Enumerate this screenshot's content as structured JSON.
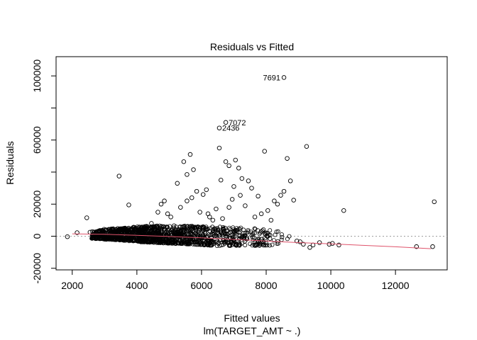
{
  "chart_data": {
    "type": "scatter",
    "title": "Residuals vs Fitted",
    "xlabel": "Fitted values",
    "xsublabel": "lm(TARGET_AMT ~ .)",
    "ylabel": "Residuals",
    "xlim": [
      1500,
      13600
    ],
    "ylim": [
      -21000,
      112000
    ],
    "x_ticks": [
      2000,
      4000,
      6000,
      8000,
      10000,
      12000
    ],
    "x_tick_labels": [
      "2000",
      "4000",
      "6000",
      "8000",
      "10000",
      "12000"
    ],
    "y_ticks": [
      -20000,
      0,
      20000,
      60000,
      100000
    ],
    "y_tick_labels": [
      "-20000",
      "0",
      "20000",
      "60000",
      "100000"
    ],
    "y_minor_ticks": [
      40000,
      80000
    ],
    "reference_line_y": 0,
    "colors": {
      "points": "#000000",
      "smooth": "#df536b",
      "reference": "#9e9e9e"
    },
    "labeled_points": [
      {
        "label": "7691",
        "x": 8550,
        "y": 99000
      },
      {
        "label": "7072",
        "x": 6750,
        "y": 71000
      },
      {
        "label": "2436",
        "x": 6550,
        "y": 67500
      }
    ],
    "points": {
      "x": [
        1850,
        2150,
        2450,
        3450,
        3750,
        5450,
        5550,
        5750,
        5650,
        6150,
        6550,
        6750,
        6850,
        6950,
        7050,
        7150,
        7250,
        7450,
        7550,
        7750,
        7950,
        8450,
        8550,
        8650,
        8750,
        9250,
        8850,
        9050,
        9450,
        10050,
        10250,
        10400,
        12650,
        13150,
        13200,
        5050,
        5150,
        5250,
        4850,
        4650,
        4450,
        5350,
        5850,
        5950,
        6250,
        6350,
        6450,
        6650,
        7350,
        7850,
        8050,
        8150,
        8250,
        8350,
        8950,
        4250,
        4050,
        3850,
        3250,
        2750,
        2550,
        2950,
        4750,
        4950,
        5550,
        6050,
        6850,
        7650,
        9150,
        9350,
        9650,
        9950,
        3550,
        3650,
        6600,
        7000,
        5700,
        7200,
        6200
      ],
      "y": [
        -300,
        2200,
        11500,
        37500,
        19500,
        46500,
        38500,
        41500,
        51000,
        29000,
        55000,
        46500,
        44000,
        23000,
        47500,
        42500,
        36000,
        34500,
        30000,
        25000,
        53000,
        25500,
        28000,
        48500,
        34500,
        56000,
        22500,
        -3500,
        -5500,
        -4500,
        -5500,
        16000,
        -6500,
        -6500,
        21500,
        12000,
        6500,
        33000,
        22000,
        15000,
        8000,
        18000,
        28000,
        15000,
        12000,
        10000,
        17000,
        11000,
        19000,
        14000,
        16000,
        10000,
        22000,
        20000,
        -3000,
        6000,
        4000,
        2500,
        1500,
        1000,
        2500,
        3500,
        20000,
        14000,
        22000,
        26000,
        18000,
        12000,
        -5000,
        -7000,
        -4000,
        -5000,
        1500,
        2500,
        35000,
        31000,
        24000,
        25500,
        14000
      ]
    },
    "dense_band": [
      {
        "x": 2600,
        "lo": -1500,
        "hi": 3000
      },
      {
        "x": 3000,
        "lo": -2000,
        "hi": 4500
      },
      {
        "x": 3500,
        "lo": -2500,
        "hi": 5000
      },
      {
        "x": 4000,
        "lo": -3500,
        "hi": 6000
      },
      {
        "x": 4500,
        "lo": -4000,
        "hi": 6500
      },
      {
        "x": 5000,
        "lo": -4500,
        "hi": 6500
      },
      {
        "x": 5500,
        "lo": -5000,
        "hi": 6500
      },
      {
        "x": 6000,
        "lo": -5500,
        "hi": 6500
      },
      {
        "x": 6500,
        "lo": -6000,
        "hi": 6000
      },
      {
        "x": 7000,
        "lo": -6000,
        "hi": 5500
      },
      {
        "x": 7500,
        "lo": -6000,
        "hi": 5000
      },
      {
        "x": 8000,
        "lo": -6000,
        "hi": 4500
      },
      {
        "x": 8500,
        "lo": -5500,
        "hi": 3000
      },
      {
        "x": 9000,
        "lo": -5500,
        "hi": 0
      }
    ],
    "smooth_line": {
      "x": [
        2000,
        3000,
        4000,
        5000,
        6000,
        7000,
        8000,
        9000,
        10000,
        11000,
        12000,
        13100
      ],
      "y": [
        1500,
        1200,
        500,
        -200,
        -1000,
        -2000,
        -3000,
        -4000,
        -4800,
        -5700,
        -6600,
        -7800
      ]
    }
  }
}
